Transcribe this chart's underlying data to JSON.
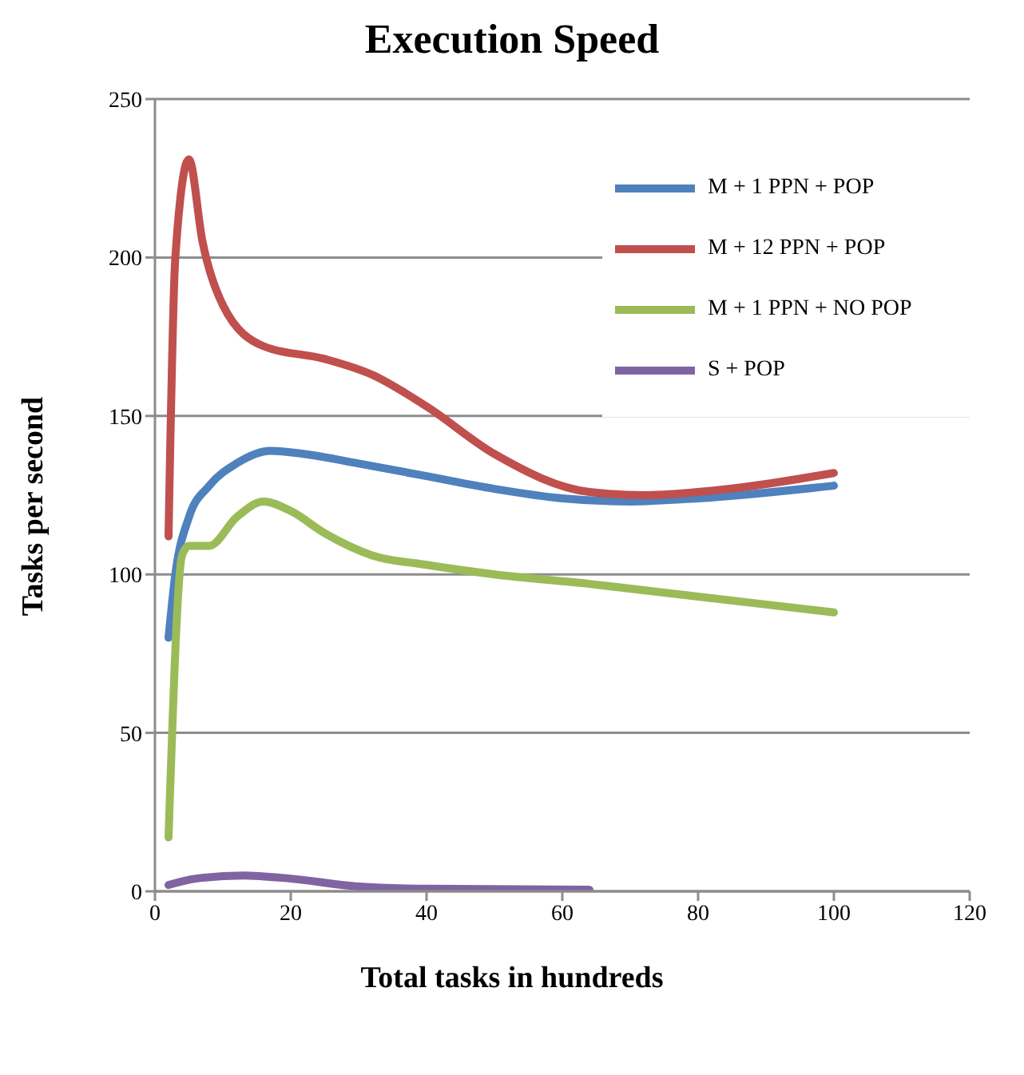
{
  "chart_data": {
    "type": "line",
    "title": "Execution Speed",
    "xlabel": "Total tasks in hundreds",
    "ylabel": "Tasks per second",
    "xlim": [
      0,
      120
    ],
    "xticks": [
      0,
      20,
      40,
      60,
      80,
      100,
      120
    ],
    "ylim": [
      0,
      250
    ],
    "yticks": [
      0,
      50,
      100,
      150,
      200,
      250
    ],
    "grid": "y",
    "legend": "top right",
    "marker": "none",
    "line_style": "solid",
    "series": [
      {
        "name": "M + 1 PPN + POP",
        "color": "#4f81bd",
        "x": [
          2,
          3,
          5,
          8,
          12,
          17,
          22,
          30,
          40,
          50,
          60,
          70,
          80,
          100
        ],
        "values": [
          80,
          100,
          118,
          128,
          135,
          139,
          138,
          135,
          131,
          127,
          124,
          123,
          124,
          128
        ]
      },
      {
        "name": "M + 12 PPN + POP",
        "color": "#c0504d",
        "x": [
          2,
          3,
          5,
          7,
          10,
          16,
          25,
          32,
          40,
          50,
          64,
          72,
          80,
          100
        ],
        "values": [
          112,
          200,
          231,
          205,
          185,
          172,
          168,
          163,
          153,
          138,
          126,
          125,
          126,
          132
        ]
      },
      {
        "name": "M + 1 PPN + NO POP",
        "color": "#9bbb59",
        "x": [
          2,
          4,
          5,
          8,
          12,
          16,
          20,
          25,
          32,
          40,
          50,
          64,
          80,
          100
        ],
        "values": [
          17,
          106,
          109,
          109,
          118,
          123,
          120,
          113,
          106,
          103,
          100,
          97,
          93,
          88
        ]
      },
      {
        "name": "S + POP",
        "color": "#8064a2",
        "x": [
          2,
          6,
          13,
          20,
          30,
          40,
          64
        ],
        "values": [
          2,
          4,
          5,
          4,
          1.5,
          0.8,
          0.5
        ]
      }
    ]
  }
}
